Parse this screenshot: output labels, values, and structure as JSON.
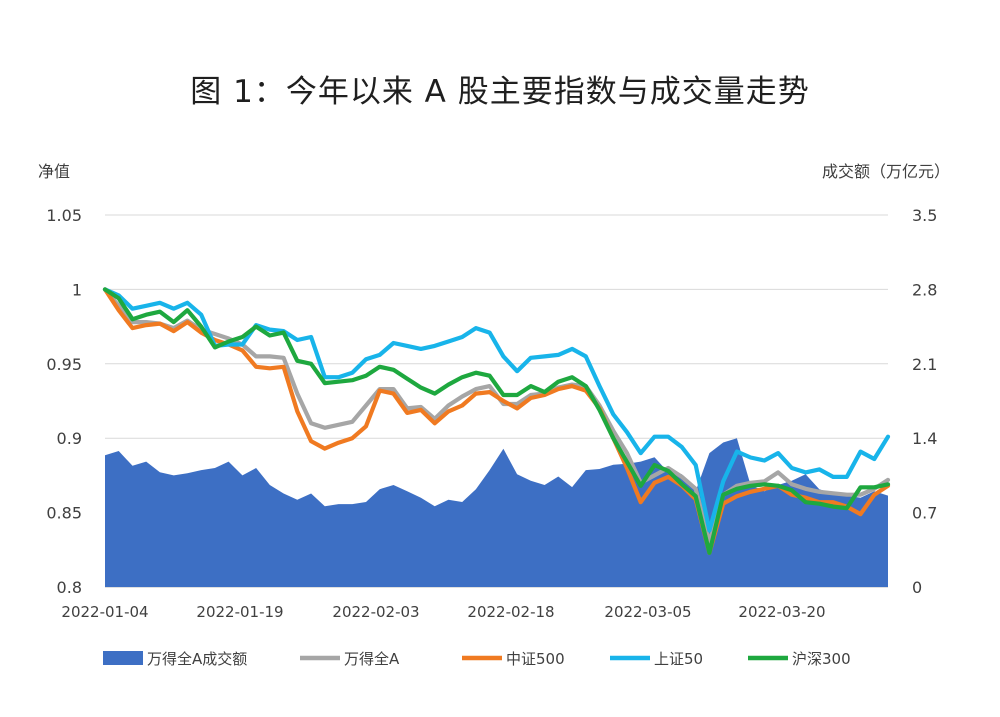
{
  "title": "图 1：今年以来 A 股主要指数与成交量走势",
  "chart_data": {
    "type": "line",
    "left_axis_label": "净值",
    "right_axis_label": "成交额（万亿元）",
    "left_ylim": [
      0.8,
      1.05
    ],
    "right_ylim": [
      0,
      3.5
    ],
    "left_ticks": [
      "1.05",
      "1",
      "0.95",
      "0.9",
      "0.85",
      "0.8"
    ],
    "right_ticks": [
      "3.5",
      "2.8",
      "2.1",
      "1.4",
      "0.7",
      "0"
    ],
    "x_tick_labels": [
      "2022-01-04",
      "2022-01-19",
      "2022-02-03",
      "2022-02-18",
      "2022-03-05",
      "2022-03-20"
    ],
    "grid": true,
    "legend_position": "bottom",
    "dates": [
      "2022-01-04",
      "2022-01-05",
      "2022-01-06",
      "2022-01-07",
      "2022-01-10",
      "2022-01-11",
      "2022-01-12",
      "2022-01-13",
      "2022-01-14",
      "2022-01-17",
      "2022-01-18",
      "2022-01-19",
      "2022-01-20",
      "2022-01-21",
      "2022-01-24",
      "2022-01-25",
      "2022-01-26",
      "2022-01-27",
      "2022-01-28",
      "2022-02-07",
      "2022-02-08",
      "2022-02-09",
      "2022-02-10",
      "2022-02-11",
      "2022-02-14",
      "2022-02-15",
      "2022-02-16",
      "2022-02-17",
      "2022-02-18",
      "2022-02-21",
      "2022-02-22",
      "2022-02-23",
      "2022-02-24",
      "2022-02-25",
      "2022-02-28",
      "2022-03-01",
      "2022-03-02",
      "2022-03-03",
      "2022-03-04",
      "2022-03-07",
      "2022-03-08",
      "2022-03-09",
      "2022-03-10",
      "2022-03-11",
      "2022-03-14",
      "2022-03-15",
      "2022-03-16",
      "2022-03-17",
      "2022-03-18",
      "2022-03-21",
      "2022-03-22",
      "2022-03-23",
      "2022-03-24",
      "2022-03-25",
      "2022-03-28",
      "2022-03-29",
      "2022-03-30",
      "2022-03-31"
    ],
    "series": [
      {
        "name": "万得全A成交额",
        "type": "area",
        "axis": "right",
        "color": "#3d6fc4",
        "values": [
          1.24,
          1.28,
          1.14,
          1.18,
          1.08,
          1.05,
          1.07,
          1.1,
          1.12,
          1.18,
          1.05,
          1.12,
          0.96,
          0.88,
          0.82,
          0.88,
          0.76,
          0.78,
          0.78,
          0.8,
          0.92,
          0.96,
          0.9,
          0.84,
          0.76,
          0.82,
          0.8,
          0.92,
          1.1,
          1.3,
          1.06,
          1.0,
          0.96,
          1.04,
          0.94,
          1.1,
          1.11,
          1.15,
          1.16,
          1.18,
          1.22,
          1.08,
          1.06,
          0.9,
          1.26,
          1.36,
          1.4,
          0.96,
          0.9,
          0.96,
          1.0,
          1.06,
          0.92,
          0.88,
          0.86,
          0.84,
          0.9,
          0.86
        ]
      },
      {
        "name": "万得全A",
        "type": "line",
        "axis": "left",
        "color": "#a6a6a6",
        "values": [
          1.0,
          0.989,
          0.978,
          0.978,
          0.977,
          0.974,
          0.979,
          0.973,
          0.97,
          0.967,
          0.963,
          0.955,
          0.955,
          0.954,
          0.93,
          0.91,
          0.907,
          0.909,
          0.911,
          0.922,
          0.933,
          0.933,
          0.92,
          0.921,
          0.913,
          0.922,
          0.928,
          0.933,
          0.935,
          0.923,
          0.923,
          0.929,
          0.93,
          0.934,
          0.936,
          0.935,
          0.922,
          0.905,
          0.89,
          0.87,
          0.875,
          0.88,
          0.874,
          0.866,
          0.83,
          0.862,
          0.868,
          0.87,
          0.871,
          0.877,
          0.869,
          0.866,
          0.864,
          0.863,
          0.862,
          0.862,
          0.866,
          0.872
        ]
      },
      {
        "name": "中证500",
        "type": "line",
        "axis": "left",
        "color": "#f07a21",
        "values": [
          1.0,
          0.986,
          0.974,
          0.976,
          0.977,
          0.972,
          0.978,
          0.971,
          0.966,
          0.963,
          0.959,
          0.948,
          0.947,
          0.948,
          0.918,
          0.898,
          0.893,
          0.897,
          0.9,
          0.908,
          0.932,
          0.93,
          0.917,
          0.919,
          0.91,
          0.918,
          0.922,
          0.93,
          0.931,
          0.925,
          0.92,
          0.927,
          0.929,
          0.933,
          0.935,
          0.932,
          0.92,
          0.9,
          0.88,
          0.857,
          0.87,
          0.874,
          0.868,
          0.859,
          0.823,
          0.856,
          0.861,
          0.864,
          0.866,
          0.868,
          0.862,
          0.86,
          0.857,
          0.857,
          0.854,
          0.849,
          0.862,
          0.868
        ]
      },
      {
        "name": "上证50",
        "type": "line",
        "axis": "left",
        "color": "#18b4ea",
        "values": [
          1.0,
          0.996,
          0.987,
          0.989,
          0.991,
          0.987,
          0.991,
          0.983,
          0.962,
          0.963,
          0.963,
          0.976,
          0.973,
          0.972,
          0.966,
          0.968,
          0.941,
          0.941,
          0.944,
          0.953,
          0.956,
          0.964,
          0.962,
          0.96,
          0.962,
          0.965,
          0.968,
          0.974,
          0.971,
          0.955,
          0.945,
          0.954,
          0.955,
          0.956,
          0.96,
          0.955,
          0.935,
          0.916,
          0.904,
          0.89,
          0.901,
          0.901,
          0.894,
          0.882,
          0.838,
          0.871,
          0.891,
          0.887,
          0.885,
          0.89,
          0.88,
          0.877,
          0.879,
          0.874,
          0.874,
          0.891,
          0.886,
          0.901
        ]
      },
      {
        "name": "沪深300",
        "type": "line",
        "axis": "left",
        "color": "#1ea83f",
        "values": [
          1.0,
          0.994,
          0.98,
          0.983,
          0.985,
          0.978,
          0.986,
          0.975,
          0.961,
          0.965,
          0.968,
          0.975,
          0.969,
          0.971,
          0.952,
          0.95,
          0.937,
          0.938,
          0.939,
          0.942,
          0.948,
          0.946,
          0.94,
          0.934,
          0.93,
          0.936,
          0.941,
          0.944,
          0.942,
          0.929,
          0.929,
          0.935,
          0.931,
          0.938,
          0.941,
          0.935,
          0.919,
          0.9,
          0.884,
          0.868,
          0.882,
          0.878,
          0.869,
          0.861,
          0.823,
          0.862,
          0.866,
          0.868,
          0.869,
          0.868,
          0.865,
          0.857,
          0.856,
          0.854,
          0.853,
          0.867,
          0.867,
          0.869
        ]
      }
    ]
  }
}
